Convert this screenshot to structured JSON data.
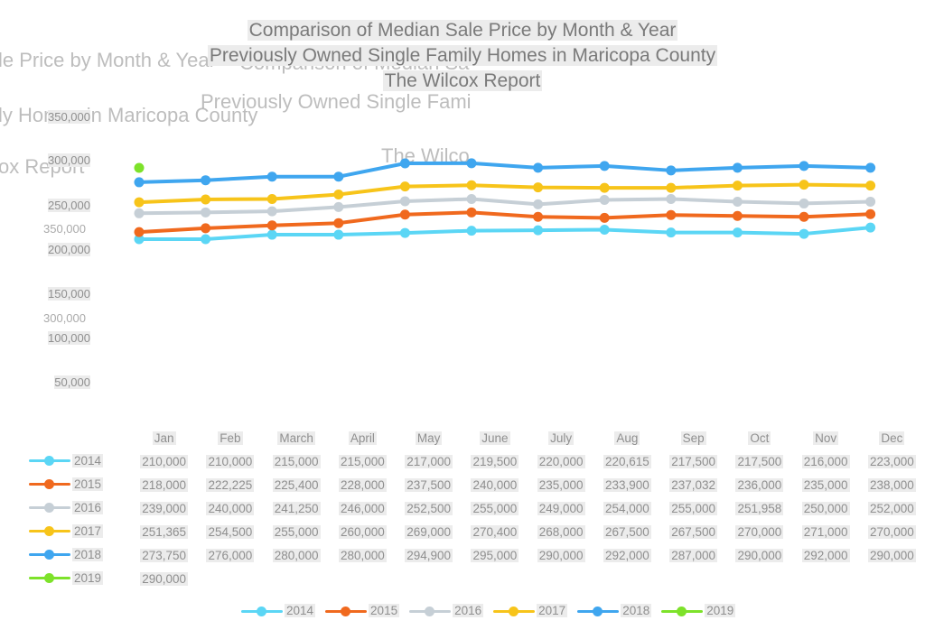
{
  "chart_data": {
    "type": "line",
    "title": [
      "Comparison of Median Sale Price by Month & Year",
      "Previously Owned Single Family Homes in Maricopa County",
      "The Wilcox Report"
    ],
    "xlabel": "",
    "ylabel": "",
    "ylim": [
      0,
      350000
    ],
    "yticks": [
      "350,000",
      "300,000",
      "250,000",
      "200,000",
      "150,000",
      "100,000",
      "50,000"
    ],
    "categories": [
      "Jan",
      "Feb",
      "March",
      "April",
      "May",
      "June",
      "July",
      "Aug",
      "Sep",
      "Oct",
      "Nov",
      "Dec"
    ],
    "legend_position": "bottom",
    "data_table": true,
    "series": [
      {
        "name": "2014",
        "color": "#5bd6f5",
        "values": [
          210000,
          210000,
          215000,
          215000,
          217000,
          219500,
          220000,
          220615,
          217500,
          217500,
          216000,
          223000
        ],
        "labels": [
          "210,000",
          "210,000",
          "215,000",
          "215,000",
          "217,000",
          "219,500",
          "220,000",
          "220,615",
          "217,500",
          "217,500",
          "216,000",
          "223,000"
        ]
      },
      {
        "name": "2015",
        "color": "#f0691e",
        "values": [
          218000,
          222225,
          225400,
          228000,
          237500,
          240000,
          235000,
          233900,
          237032,
          236000,
          235000,
          238000
        ],
        "labels": [
          "218,000",
          "222,225",
          "225,400",
          "228,000",
          "237,500",
          "240,000",
          "235,000",
          "233,900",
          "237,032",
          "236,000",
          "235,000",
          "238,000"
        ]
      },
      {
        "name": "2016",
        "color": "#c6cfd6",
        "values": [
          239000,
          240000,
          241250,
          246000,
          252500,
          255000,
          249000,
          254000,
          255000,
          251958,
          250000,
          252000
        ],
        "labels": [
          "239,000",
          "240,000",
          "241,250",
          "246,000",
          "252,500",
          "255,000",
          "249,000",
          "254,000",
          "255,000",
          "251,958",
          "250,000",
          "252,000"
        ]
      },
      {
        "name": "2017",
        "color": "#f7c41a",
        "values": [
          251365,
          254500,
          255000,
          260000,
          269000,
          270400,
          268000,
          267500,
          267500,
          270000,
          271000,
          270000
        ],
        "labels": [
          "251,365",
          "254,500",
          "255,000",
          "260,000",
          "269,000",
          "270,400",
          "268,000",
          "267,500",
          "267,500",
          "270,000",
          "271,000",
          "270,000"
        ]
      },
      {
        "name": "2018",
        "color": "#3fa6ef",
        "values": [
          273750,
          276000,
          280000,
          280000,
          294900,
          295000,
          290000,
          292000,
          287000,
          290000,
          292000,
          290000
        ],
        "labels": [
          "273,750",
          "276,000",
          "280,000",
          "280,000",
          "294,900",
          "295,000",
          "290,000",
          "292,000",
          "287,000",
          "290,000",
          "292,000",
          "290,000"
        ]
      },
      {
        "name": "2019",
        "color": "#7de22a",
        "values": [
          290000
        ],
        "labels": [
          "290,000"
        ]
      }
    ]
  },
  "ghost_text": {
    "left_title_1": "le Price by Month & Year",
    "left_title_2": "ly Homes in Maricopa County",
    "left_title_3": "ox Report",
    "mid_title_1": "Comparison of Median Sa",
    "mid_title_2": "Previously Owned Single Fami",
    "mid_title_3": "The Wilco",
    "ghost_tick_1": "350,000",
    "ghost_tick_2": "300,000"
  }
}
